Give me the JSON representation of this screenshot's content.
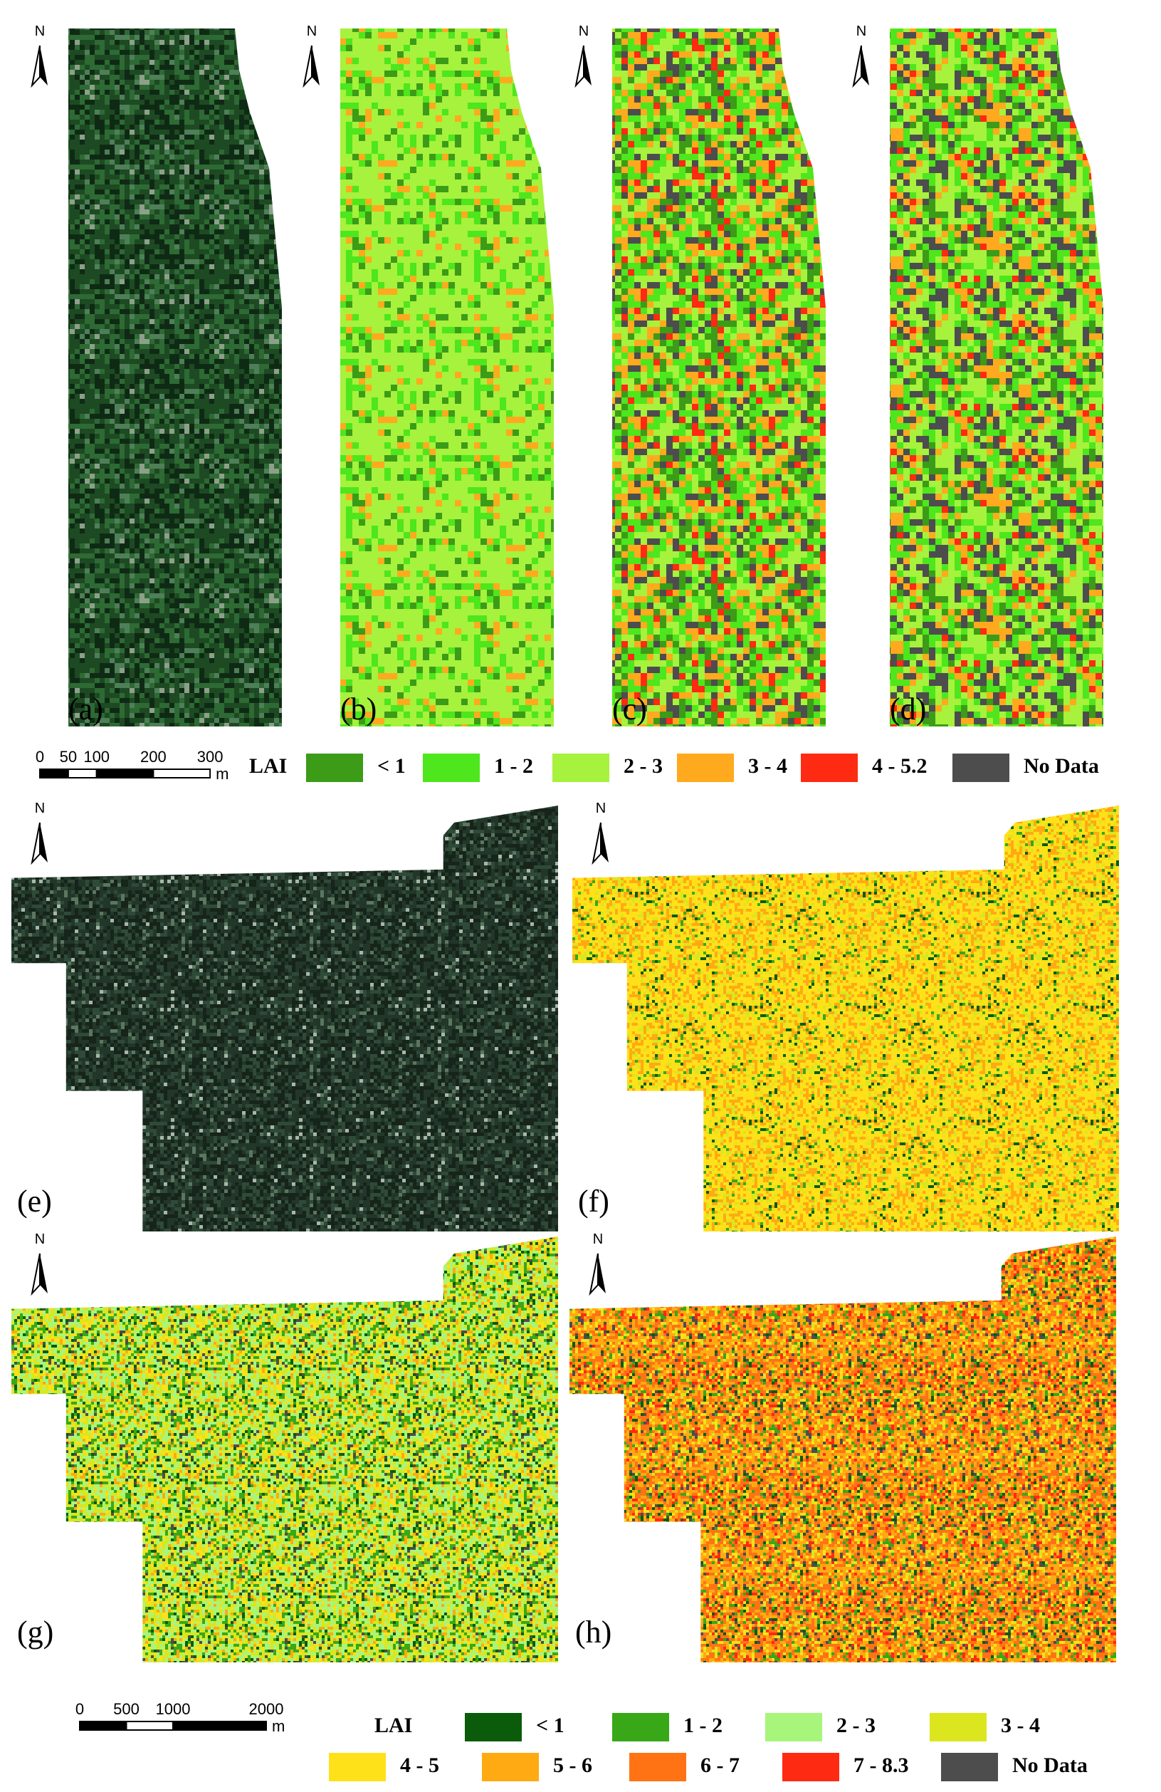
{
  "north_label": "N",
  "top_figure": {
    "panels": [
      {
        "label": "(a)"
      },
      {
        "label": "(b)"
      },
      {
        "label": "(c)"
      },
      {
        "label": "(d)"
      }
    ],
    "scale_bar": {
      "ticks": [
        0,
        50,
        100,
        200,
        300
      ],
      "unit": "m"
    },
    "legend": {
      "title": "LAI",
      "items": [
        {
          "label": "< 1",
          "color": "#3c9c18"
        },
        {
          "label": "1 - 2",
          "color": "#4ee61c"
        },
        {
          "label": "2 - 3",
          "color": "#a6f23c"
        },
        {
          "label": "3 - 4",
          "color": "#ffaa1e"
        },
        {
          "label": "4 - 5.2",
          "color": "#ff2a12"
        },
        {
          "label": "No Data",
          "color": "#4d4d4d"
        }
      ]
    }
  },
  "bottom_figure": {
    "panels": [
      {
        "label": "(e)"
      },
      {
        "label": "(f)"
      },
      {
        "label": "(g)"
      },
      {
        "label": "(h)"
      }
    ],
    "scale_bar": {
      "ticks": [
        0,
        500,
        1000,
        2000
      ],
      "unit": "m"
    },
    "legend": {
      "title": "LAI",
      "items": [
        {
          "label": "< 1",
          "color": "#0a5c0a"
        },
        {
          "label": "1 - 2",
          "color": "#38a818"
        },
        {
          "label": "2 - 3",
          "color": "#a8f57c"
        },
        {
          "label": "3 - 4",
          "color": "#dce61e"
        },
        {
          "label": "4 - 5",
          "color": "#ffe11a"
        },
        {
          "label": "5 - 6",
          "color": "#ffaa12"
        },
        {
          "label": "6 - 7",
          "color": "#ff7314"
        },
        {
          "label": "7 - 8.3",
          "color": "#ff2a12"
        },
        {
          "label": "No Data",
          "color": "#4d4d4d"
        }
      ]
    }
  }
}
